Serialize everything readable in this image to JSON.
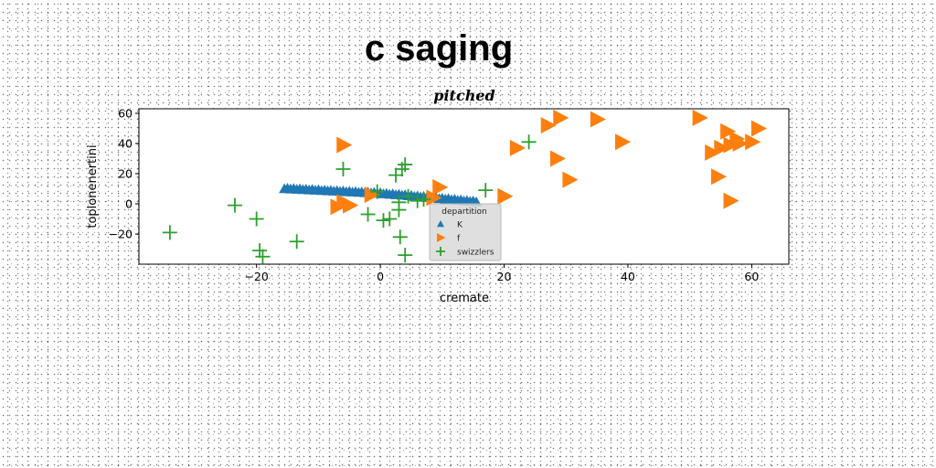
{
  "chart_data": {
    "type": "scatter",
    "suptitle": "c saging",
    "title": "pitched",
    "xlabel": "cremate",
    "ylabel": "toplonenertini",
    "xlim": [
      -39,
      66
    ],
    "ylim": [
      -40,
      63
    ],
    "xticks": [
      -20,
      0,
      20,
      40,
      60
    ],
    "yticks": [
      -20,
      0,
      20,
      40,
      60
    ],
    "grid": false,
    "legend": {
      "title": "departition",
      "location": "lower-center"
    },
    "series": [
      {
        "name": "K",
        "marker": "triangle-up",
        "color": "#1f77b4",
        "points": [
          [
            -15.5,
            10.0
          ],
          [
            -15.0,
            10.3
          ],
          [
            -14.5,
            9.8
          ],
          [
            -14.0,
            10.1
          ],
          [
            -13.5,
            9.6
          ],
          [
            -13.0,
            9.9
          ],
          [
            -12.5,
            9.4
          ],
          [
            -12.0,
            9.7
          ],
          [
            -11.5,
            9.2
          ],
          [
            -11.0,
            9.5
          ],
          [
            -10.5,
            9.0
          ],
          [
            -10.0,
            9.3
          ],
          [
            -9.5,
            8.8
          ],
          [
            -9.0,
            9.1
          ],
          [
            -8.5,
            8.6
          ],
          [
            -8.0,
            8.9
          ],
          [
            -7.5,
            8.4
          ],
          [
            -7.0,
            8.7
          ],
          [
            -6.5,
            8.2
          ],
          [
            -6.0,
            8.5
          ],
          [
            -5.5,
            8.0
          ],
          [
            -5.0,
            8.3
          ],
          [
            -4.5,
            7.8
          ],
          [
            -4.0,
            8.1
          ],
          [
            -3.5,
            7.6
          ],
          [
            -3.0,
            7.9
          ],
          [
            -2.5,
            7.4
          ],
          [
            -2.0,
            7.7
          ],
          [
            -1.5,
            7.2
          ],
          [
            -1.0,
            7.5
          ],
          [
            -0.5,
            7.0
          ],
          [
            0.0,
            7.3
          ],
          [
            0.5,
            6.6
          ],
          [
            1.0,
            6.9
          ],
          [
            1.5,
            6.3
          ],
          [
            2.0,
            6.6
          ],
          [
            2.5,
            6.0
          ],
          [
            3.0,
            6.3
          ],
          [
            3.5,
            5.7
          ],
          [
            4.0,
            6.0
          ],
          [
            4.5,
            5.3
          ],
          [
            5.0,
            5.6
          ],
          [
            5.5,
            4.9
          ],
          [
            6.0,
            5.2
          ],
          [
            6.5,
            4.6
          ],
          [
            7.0,
            4.9
          ],
          [
            7.5,
            4.2
          ],
          [
            8.0,
            4.5
          ],
          [
            8.5,
            3.8
          ],
          [
            9.0,
            4.1
          ],
          [
            9.5,
            3.4
          ],
          [
            10.0,
            3.7
          ],
          [
            10.5,
            3.1
          ],
          [
            11.0,
            3.4
          ],
          [
            11.5,
            2.7
          ],
          [
            12.0,
            3.0
          ],
          [
            12.5,
            2.3
          ],
          [
            13.0,
            2.6
          ],
          [
            13.5,
            1.9
          ],
          [
            14.0,
            2.2
          ],
          [
            14.5,
            1.6
          ],
          [
            15.0,
            1.9
          ],
          [
            15.5,
            1.3
          ]
        ]
      },
      {
        "name": "f",
        "marker": "triangle-right",
        "color": "#ff7f0e",
        "points": [
          [
            -6.0,
            39
          ],
          [
            -7.0,
            -2
          ],
          [
            -6.0,
            1
          ],
          [
            -5.0,
            -1
          ],
          [
            -1.5,
            6
          ],
          [
            8.5,
            4
          ],
          [
            9.5,
            11
          ],
          [
            20.0,
            5
          ],
          [
            22.0,
            37
          ],
          [
            27.0,
            52
          ],
          [
            29.0,
            57
          ],
          [
            28.5,
            30
          ],
          [
            30.5,
            16
          ],
          [
            35.0,
            56
          ],
          [
            39.0,
            41
          ],
          [
            51.5,
            57
          ],
          [
            53.5,
            34
          ],
          [
            54.5,
            18
          ],
          [
            56.0,
            48
          ],
          [
            55.0,
            37
          ],
          [
            56.5,
            39
          ],
          [
            57.5,
            43
          ],
          [
            58.0,
            40
          ],
          [
            60.0,
            41
          ],
          [
            61.0,
            50
          ],
          [
            56.5,
            2
          ]
        ]
      },
      {
        "name": "swizzlers",
        "marker": "plus",
        "color": "#2ca02c",
        "points": [
          [
            -34,
            -19
          ],
          [
            -23.5,
            -1
          ],
          [
            -20,
            -10
          ],
          [
            -19.5,
            -31
          ],
          [
            -19,
            -35
          ],
          [
            -13.5,
            -25
          ],
          [
            -6,
            23
          ],
          [
            -2,
            -7
          ],
          [
            -0.5,
            8
          ],
          [
            0.5,
            -11
          ],
          [
            1.5,
            -10
          ],
          [
            2.5,
            19
          ],
          [
            3,
            -4
          ],
          [
            3.2,
            -22
          ],
          [
            3.5,
            23
          ],
          [
            4,
            26
          ],
          [
            4,
            -34
          ],
          [
            4.5,
            5
          ],
          [
            3,
            1
          ],
          [
            6,
            2
          ],
          [
            7,
            3
          ],
          [
            17,
            9
          ],
          [
            24,
            41
          ]
        ]
      }
    ]
  }
}
